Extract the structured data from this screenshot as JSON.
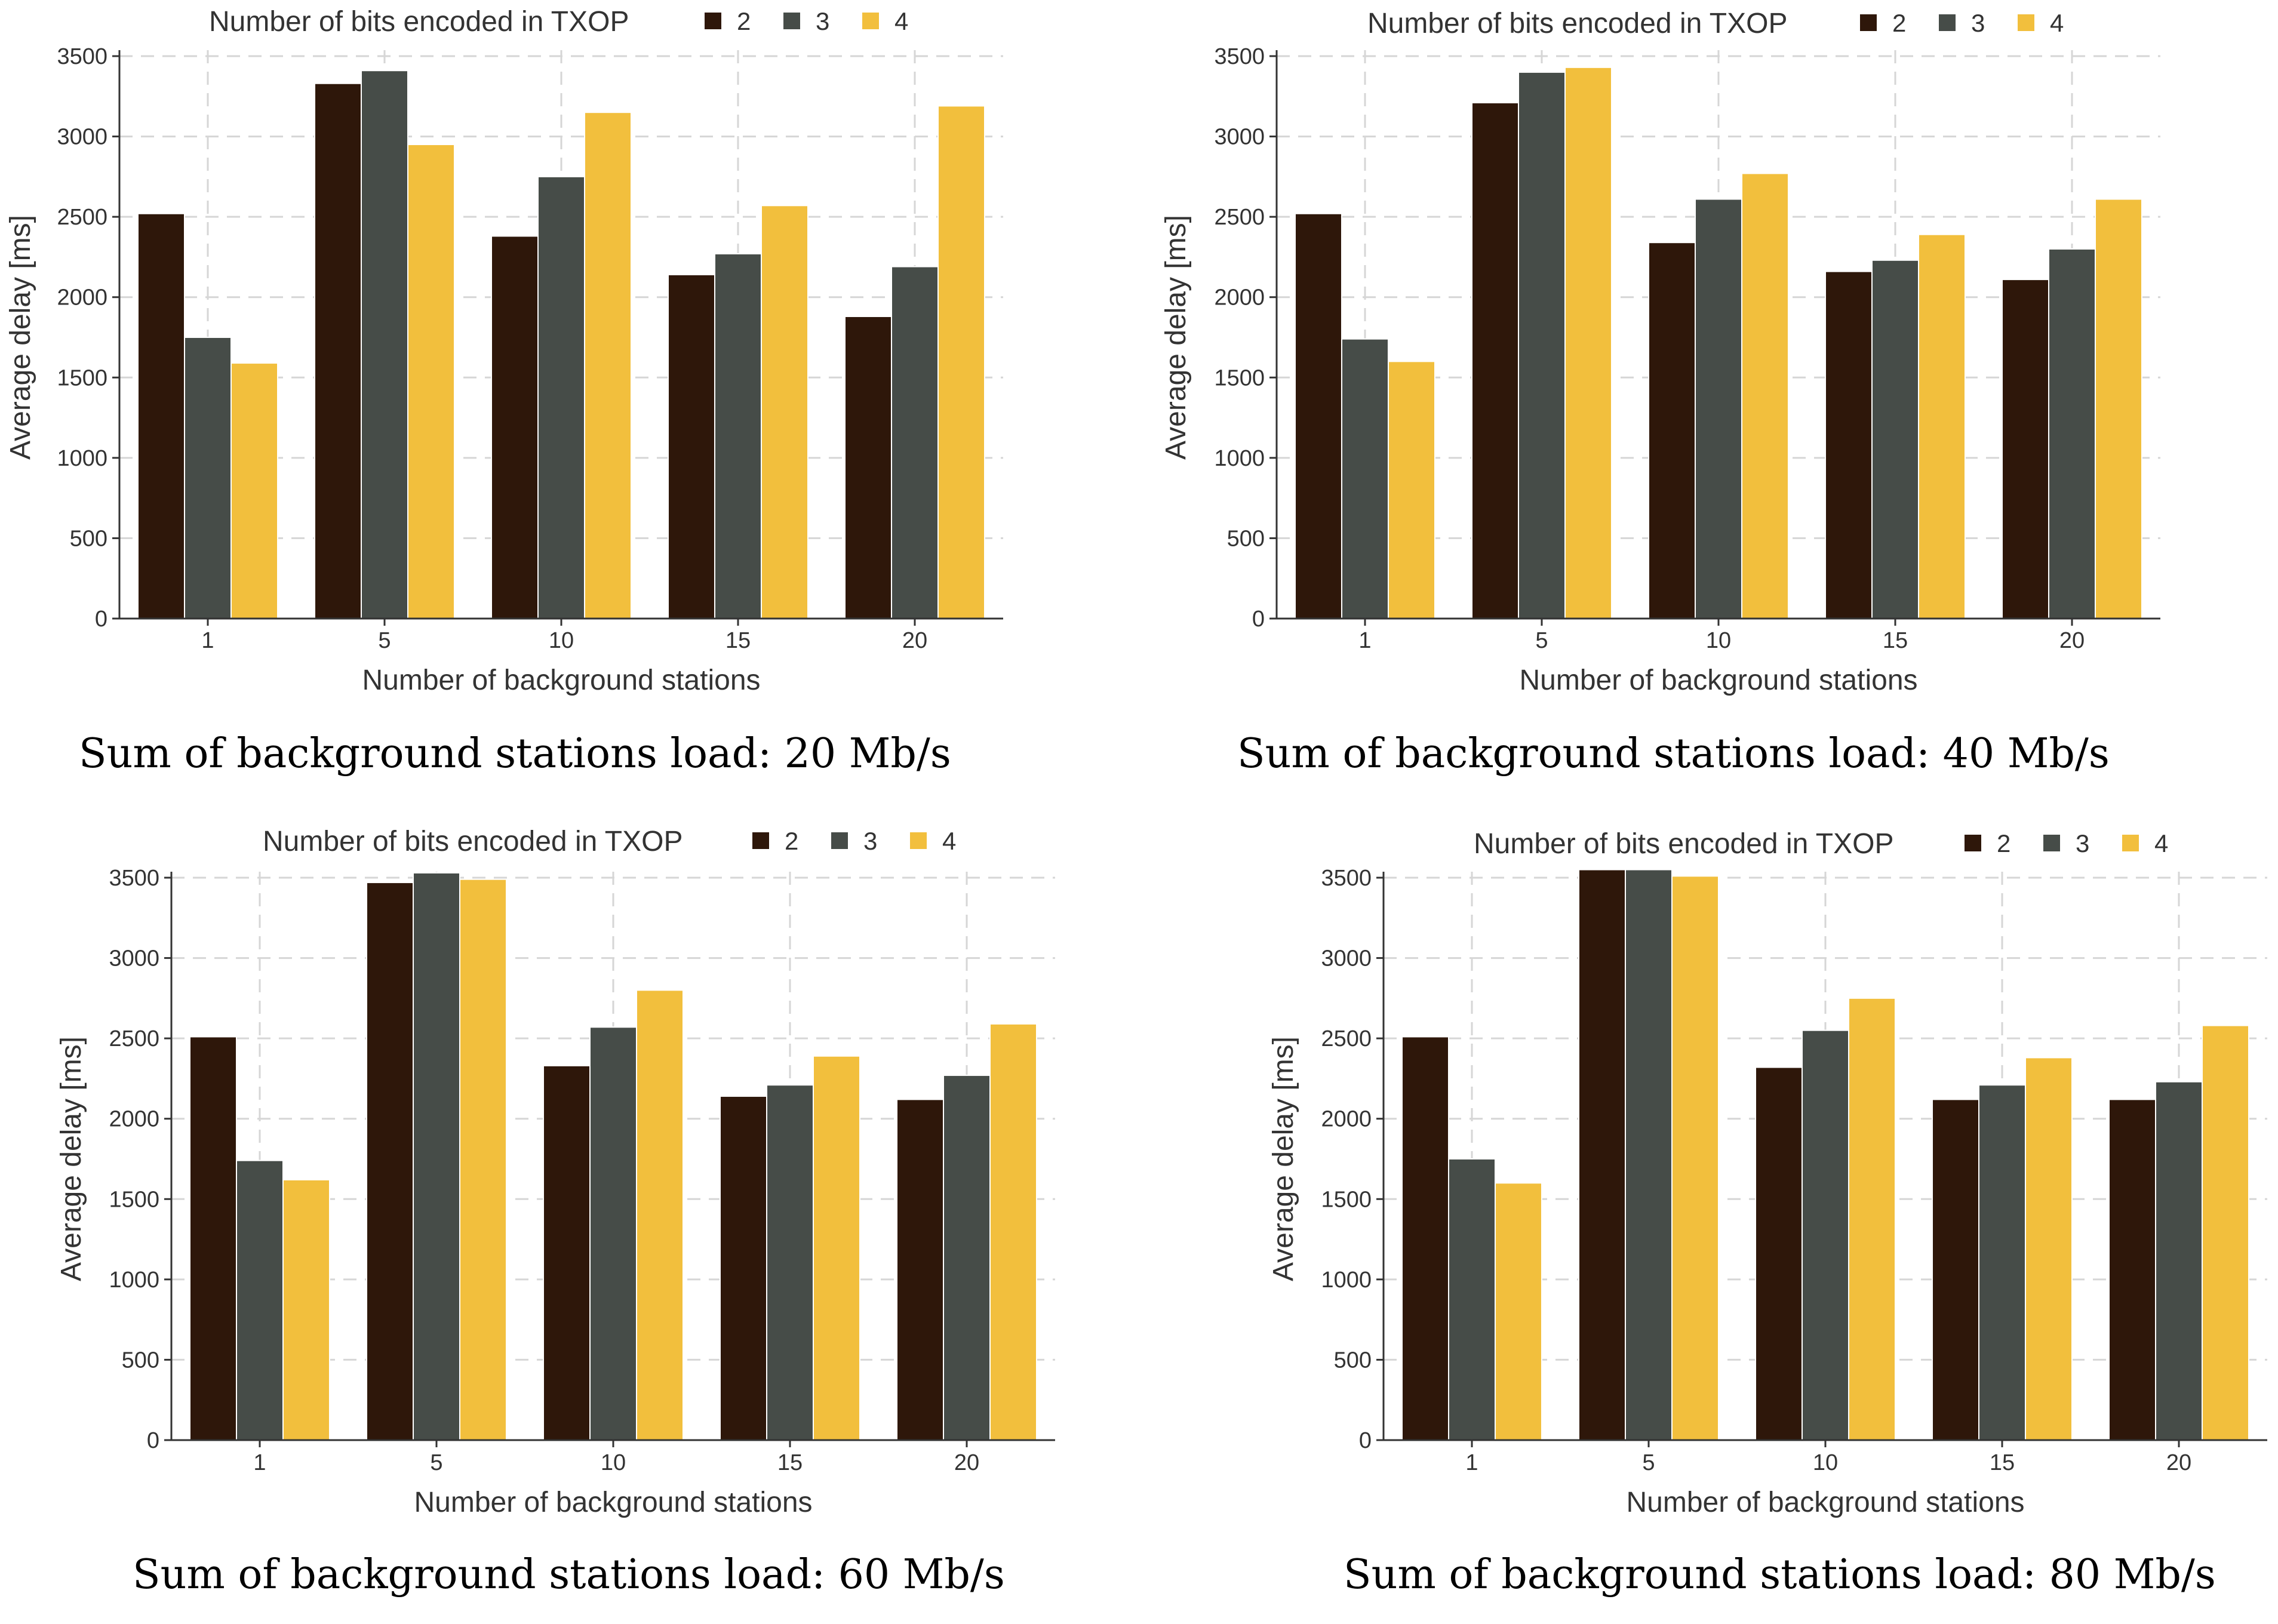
{
  "colors": {
    "series_2": "#2e170a",
    "series_3": "#464c48",
    "series_4": "#f2bf3d",
    "grid": "#d6d6d6",
    "axis": "#333333"
  },
  "chart_data": [
    {
      "type": "bar",
      "caption": "Sum of background stations load: 20 Mb/s",
      "legend_title": "Number of bits encoded in TXOP",
      "legend_position": "top",
      "xlabel": "Number of background stations",
      "ylabel": "Average delay [ms]",
      "ylim": [
        0,
        3500
      ],
      "yticks": [
        0,
        500,
        1000,
        1500,
        2000,
        2500,
        3000,
        3500
      ],
      "grid": true,
      "categories": [
        "1",
        "5",
        "10",
        "15",
        "20"
      ],
      "series": [
        {
          "name": "2",
          "values": [
            2520,
            3330,
            2380,
            2140,
            1880
          ]
        },
        {
          "name": "3",
          "values": [
            1750,
            3410,
            2750,
            2270,
            2190
          ]
        },
        {
          "name": "4",
          "values": [
            1590,
            2950,
            3150,
            2570,
            3190
          ]
        }
      ]
    },
    {
      "type": "bar",
      "caption": "Sum of background stations load: 40 Mb/s",
      "legend_title": "Number of bits encoded in TXOP",
      "legend_position": "top",
      "xlabel": "Number of background stations",
      "ylabel": "Average delay [ms]",
      "ylim": [
        0,
        3500
      ],
      "yticks": [
        0,
        500,
        1000,
        1500,
        2000,
        2500,
        3000,
        3500
      ],
      "grid": true,
      "categories": [
        "1",
        "5",
        "10",
        "15",
        "20"
      ],
      "series": [
        {
          "name": "2",
          "values": [
            2520,
            3210,
            2340,
            2160,
            2110
          ]
        },
        {
          "name": "3",
          "values": [
            1740,
            3400,
            2610,
            2230,
            2300
          ]
        },
        {
          "name": "4",
          "values": [
            1600,
            3430,
            2770,
            2390,
            2610
          ]
        }
      ]
    },
    {
      "type": "bar",
      "caption": "Sum of background stations load: 60 Mb/s",
      "legend_title": "Number of bits encoded in TXOP",
      "legend_position": "top",
      "xlabel": "Number of background stations",
      "ylabel": "Average delay [ms]",
      "ylim": [
        0,
        3500
      ],
      "yticks": [
        0,
        500,
        1000,
        1500,
        2000,
        2500,
        3000,
        3500
      ],
      "grid": true,
      "categories": [
        "1",
        "5",
        "10",
        "15",
        "20"
      ],
      "series": [
        {
          "name": "2",
          "values": [
            2510,
            3470,
            2330,
            2140,
            2120
          ]
        },
        {
          "name": "3",
          "values": [
            1740,
            3530,
            2570,
            2210,
            2270
          ]
        },
        {
          "name": "4",
          "values": [
            1620,
            3490,
            2800,
            2390,
            2590
          ]
        }
      ]
    },
    {
      "type": "bar",
      "caption": "Sum of background stations load: 80 Mb/s",
      "legend_title": "Number of bits encoded in TXOP",
      "legend_position": "top",
      "xlabel": "Number of background stations",
      "ylabel": "Average delay [ms]",
      "ylim": [
        0,
        3500
      ],
      "yticks": [
        0,
        500,
        1000,
        1500,
        2000,
        2500,
        3000,
        3500
      ],
      "grid": true,
      "categories": [
        "1",
        "5",
        "10",
        "15",
        "20"
      ],
      "series": [
        {
          "name": "2",
          "values": [
            2510,
            3550,
            2320,
            2120,
            2120
          ]
        },
        {
          "name": "3",
          "values": [
            1750,
            3550,
            2550,
            2210,
            2230
          ]
        },
        {
          "name": "4",
          "values": [
            1600,
            3510,
            2750,
            2380,
            2580
          ]
        }
      ]
    }
  ]
}
